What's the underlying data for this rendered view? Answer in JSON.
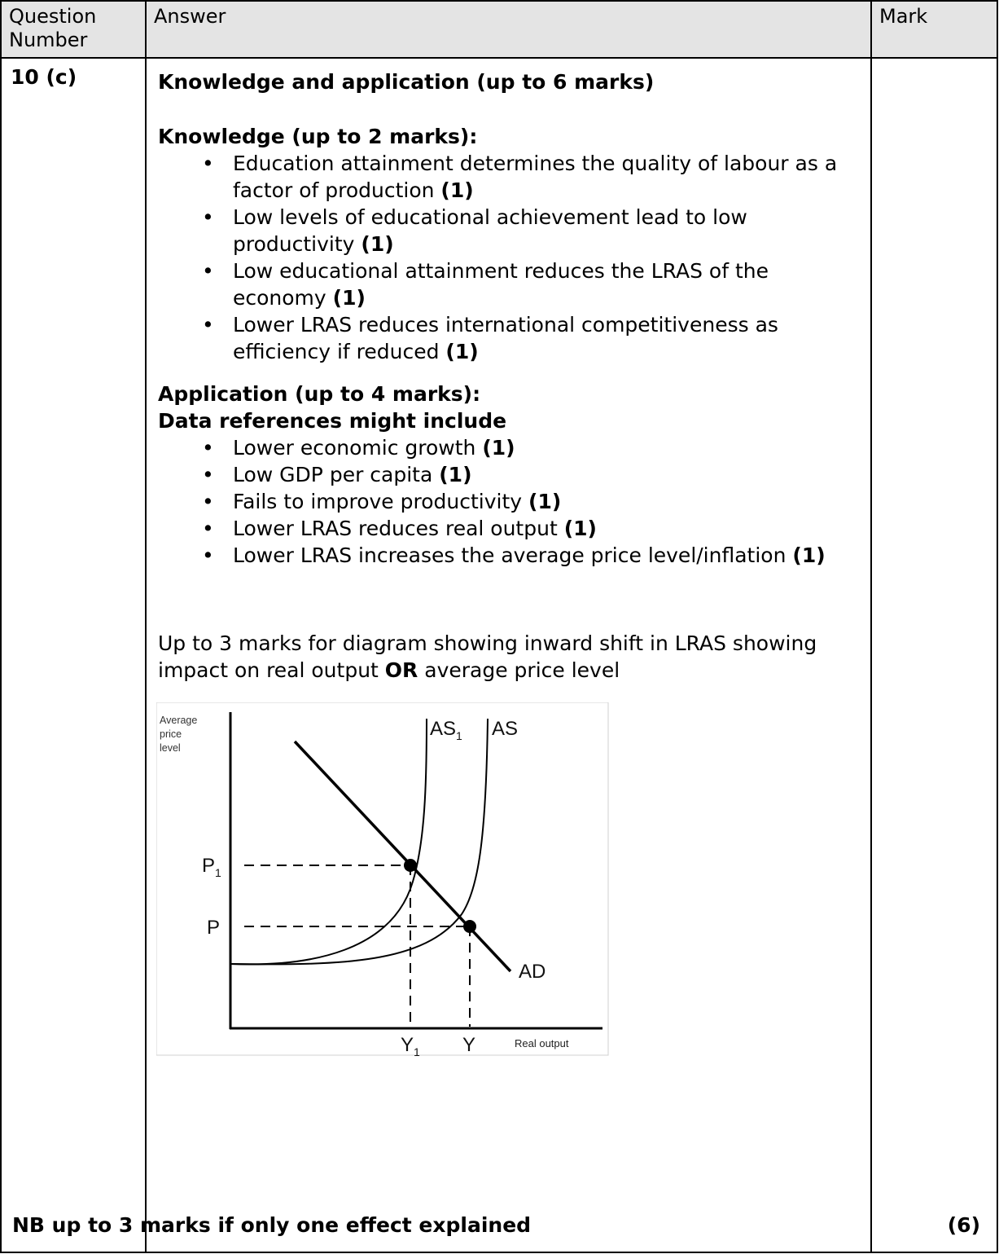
{
  "header": {
    "question": "Question Number",
    "answer": "Answer",
    "mark": "Mark"
  },
  "question_number": "10 (c)",
  "title": "Knowledge and application (up to 6 marks)",
  "knowledge": {
    "heading": "Knowledge (up to 2 marks):",
    "items": [
      {
        "text": "Education attainment determines the quality of labour as a factor of production ",
        "mark": "(1)"
      },
      {
        "text": "Low levels of educational achievement lead to low productivity ",
        "mark": "(1)"
      },
      {
        "text": "Low educational attainment reduces the LRAS of the economy ",
        "mark": "(1)"
      },
      {
        "text": "Lower LRAS reduces international competitiveness as efficiency if reduced ",
        "mark": "(1)"
      }
    ]
  },
  "application": {
    "heading": "Application (up to 4 marks):",
    "subheading": "Data references might include",
    "items": [
      {
        "text": "Lower economic growth ",
        "mark": "(1)"
      },
      {
        "text": "Low GDP per capita ",
        "mark": "(1)"
      },
      {
        "text": "Fails to improve productivity ",
        "mark": "(1)"
      },
      {
        "text": "Lower LRAS reduces real output ",
        "mark": "(1)"
      },
      {
        "text": "Lower LRAS increases the average price level/inflation ",
        "mark": "(1)"
      }
    ]
  },
  "diagram_note": {
    "before": "Up to 3 marks for diagram showing inward shift in LRAS showing impact on real output ",
    "emph": "OR",
    "after": " average price level"
  },
  "diagram": {
    "y_axis_label": [
      "Average",
      "price",
      "level"
    ],
    "x_axis_label": "Real output",
    "curves": {
      "as1": "AS",
      "as1_sub": "1",
      "as": "AS",
      "ad": "AD"
    },
    "prices": {
      "p1": "P",
      "p1_sub": "1",
      "p": "P"
    },
    "outputs": {
      "y1": "Y",
      "y1_sub": "1",
      "y": "Y"
    }
  },
  "nb": "NB up to 3 marks if only one effect explained",
  "marks": "(6)"
}
